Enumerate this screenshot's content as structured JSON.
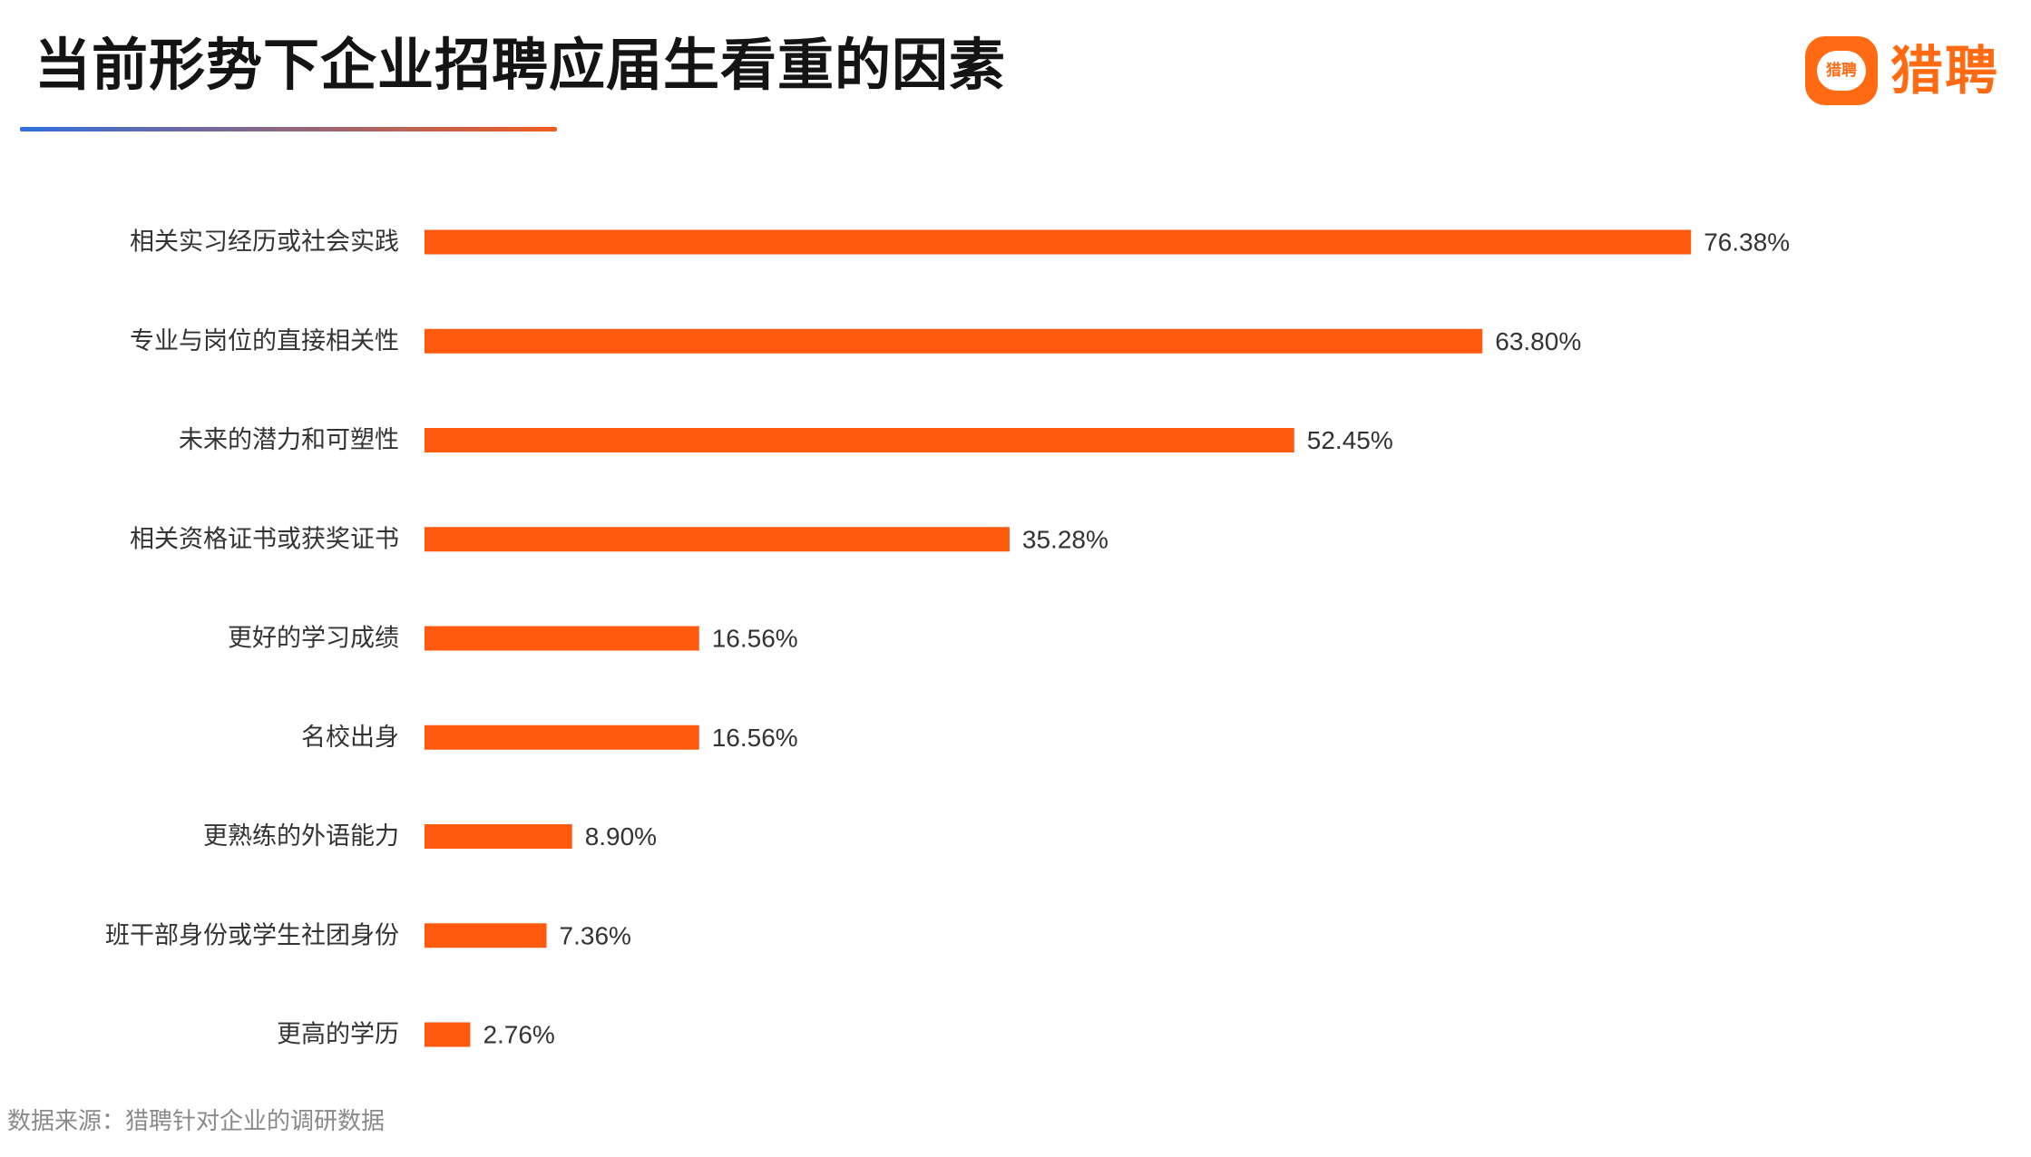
{
  "header": {
    "title": "当前形势下企业招聘应届生看重的因素"
  },
  "logo": {
    "icon": "chat-bubble-icon",
    "bubble_text": "猎聘",
    "text": "猎聘"
  },
  "source": {
    "text": "数据来源：猎聘针对企业的调研数据"
  },
  "colors": {
    "bar": "#FF5A0E",
    "brand": "#FF6A13",
    "underline_start": "#2F6FE0",
    "underline_end": "#F25C1E",
    "label": "#333333",
    "value": "#333333"
  },
  "chart_data": {
    "type": "bar",
    "orientation": "horizontal",
    "title": "当前形势下企业招聘应届生看重的因素",
    "xlabel": "",
    "ylabel": "",
    "xlim": [
      0,
      100
    ],
    "grid": false,
    "legend": "none",
    "value_suffix": "%",
    "categories": [
      "相关实习经历或社会实践",
      "专业与岗位的直接相关性",
      "未来的潜力和可塑性",
      "相关资格证书或获奖证书",
      "更好的学习成绩",
      "名校出身",
      "更熟练的外语能力",
      "班干部身份或学生社团身份",
      "更高的学历"
    ],
    "values": [
      76.38,
      63.8,
      52.45,
      35.28,
      16.56,
      16.56,
      8.9,
      7.36,
      2.76
    ],
    "value_labels": [
      "76.38%",
      "63.80%",
      "52.45%",
      "35.28%",
      "16.56%",
      "16.56%",
      "8.90%",
      "7.36%",
      "2.76%"
    ]
  }
}
